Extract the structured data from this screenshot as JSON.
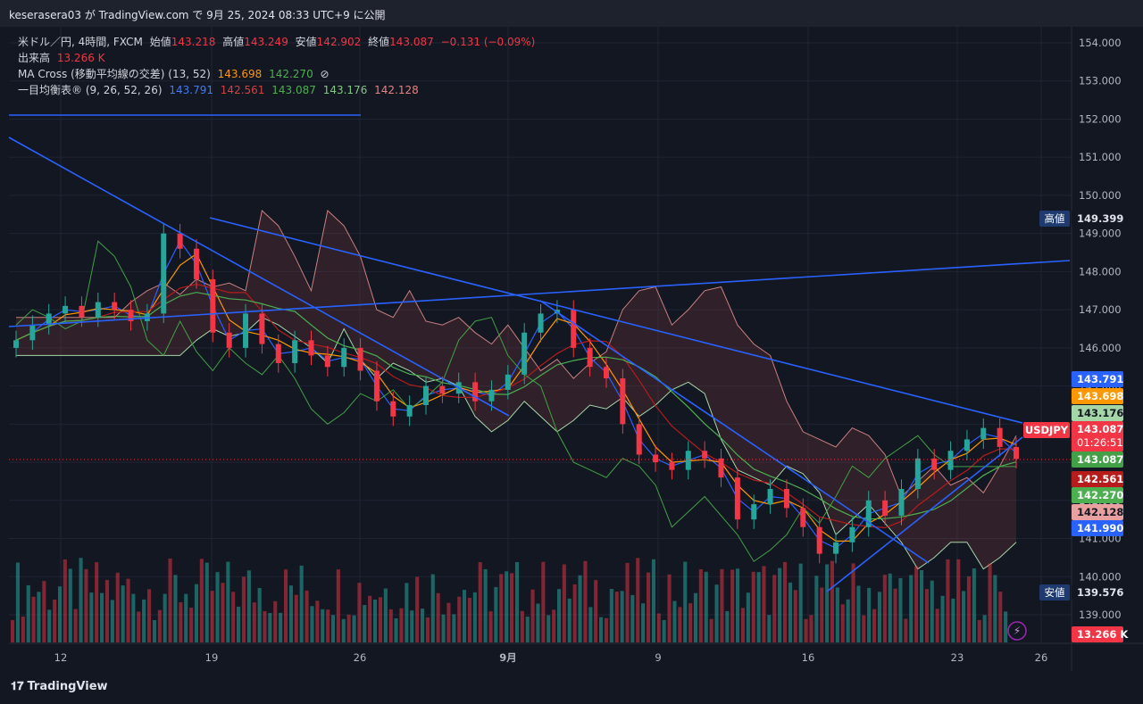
{
  "header": {
    "publish_text": "keserasera03 が TradingView.com で 9月 25, 2024 08:33 UTC+9 に公開"
  },
  "legend": {
    "symbol": "米ドル／円, 4時間, FXCM",
    "open_label": "始値",
    "open": "143.218",
    "high_label": "高値",
    "high": "143.249",
    "low_label": "安値",
    "low": "142.902",
    "close_label": "終値",
    "close": "143.087",
    "change": "−0.131 (−0.09%)",
    "volume_label": "出来高",
    "volume": "13.266 K",
    "ma_label": "MA Cross (移動平均線の交差) (13, 52)",
    "ma_fast": "143.698",
    "ma_slow": "142.270",
    "ma_icon": "⊘",
    "ichi_label": "一目均衡表® (9, 26, 52, 26)",
    "ichi_tenkan": "143.791",
    "ichi_kijun": "142.561",
    "ichi_chikou": "143.087",
    "ichi_spanA": "143.176",
    "ichi_spanB": "142.128"
  },
  "price_axis": {
    "ticks": [
      "154.000",
      "153.000",
      "152.000",
      "151.000",
      "150.000",
      "149.000",
      "148.000",
      "147.000",
      "146.000",
      "145.000",
      "144.000",
      "143.000",
      "142.000",
      "141.000",
      "140.000",
      "139.000"
    ]
  },
  "time_axis": {
    "ticks": [
      "12",
      "19",
      "26",
      "9月",
      "9",
      "16",
      "23",
      "26"
    ]
  },
  "markers": {
    "high_label": "高値",
    "high_value": "149.399",
    "low_label": "安値",
    "low_value": "139.576",
    "tenkan": "143.791",
    "ma_fast": "143.698",
    "spanA": "143.176",
    "symbol_tag": "USDJPY",
    "last_price": "143.087",
    "countdown": "01:26:51",
    "chikou": "143.087",
    "kijun": "142.561",
    "ma_slow": "142.270",
    "spanB": "142.128",
    "trend_value": "141.990",
    "volume_value": "13.266 K"
  },
  "colors": {
    "up": "#26a69a",
    "down": "#f23645",
    "tenkan": "#2962ff",
    "kijun": "#b71c1c",
    "chikou": "#43a047",
    "ma_fast": "#ff9800",
    "ma_slow": "#4caf50",
    "trendline": "#2962ff"
  },
  "chart_data": {
    "type": "candlestick",
    "title": "米ドル／円, 4時間, FXCM",
    "y_range": [
      138.5,
      154.5
    ],
    "x_ticks": [
      "12",
      "19",
      "26",
      "9月",
      "9",
      "16",
      "23",
      "26"
    ],
    "close_series_approx": [
      146.2,
      146.6,
      146.9,
      147.1,
      146.8,
      147.2,
      147.0,
      146.7,
      146.9,
      149.0,
      148.6,
      147.8,
      146.4,
      146.0,
      146.9,
      146.1,
      145.6,
      146.2,
      145.8,
      145.5,
      146.0,
      145.4,
      144.6,
      144.2,
      144.5,
      145.0,
      144.8,
      145.1,
      144.6,
      144.9,
      145.3,
      146.4,
      146.9,
      147.0,
      146.0,
      145.5,
      145.2,
      144.0,
      143.2,
      143.0,
      142.8,
      143.3,
      143.1,
      142.6,
      141.5,
      141.9,
      142.3,
      141.8,
      141.3,
      140.6,
      140.9,
      141.3,
      142.0,
      141.6,
      142.3,
      143.1,
      142.8,
      143.3,
      143.6,
      143.9,
      143.4,
      143.087
    ],
    "volume_last": 13.266,
    "high_marker": 149.399,
    "low_marker": 139.576
  }
}
